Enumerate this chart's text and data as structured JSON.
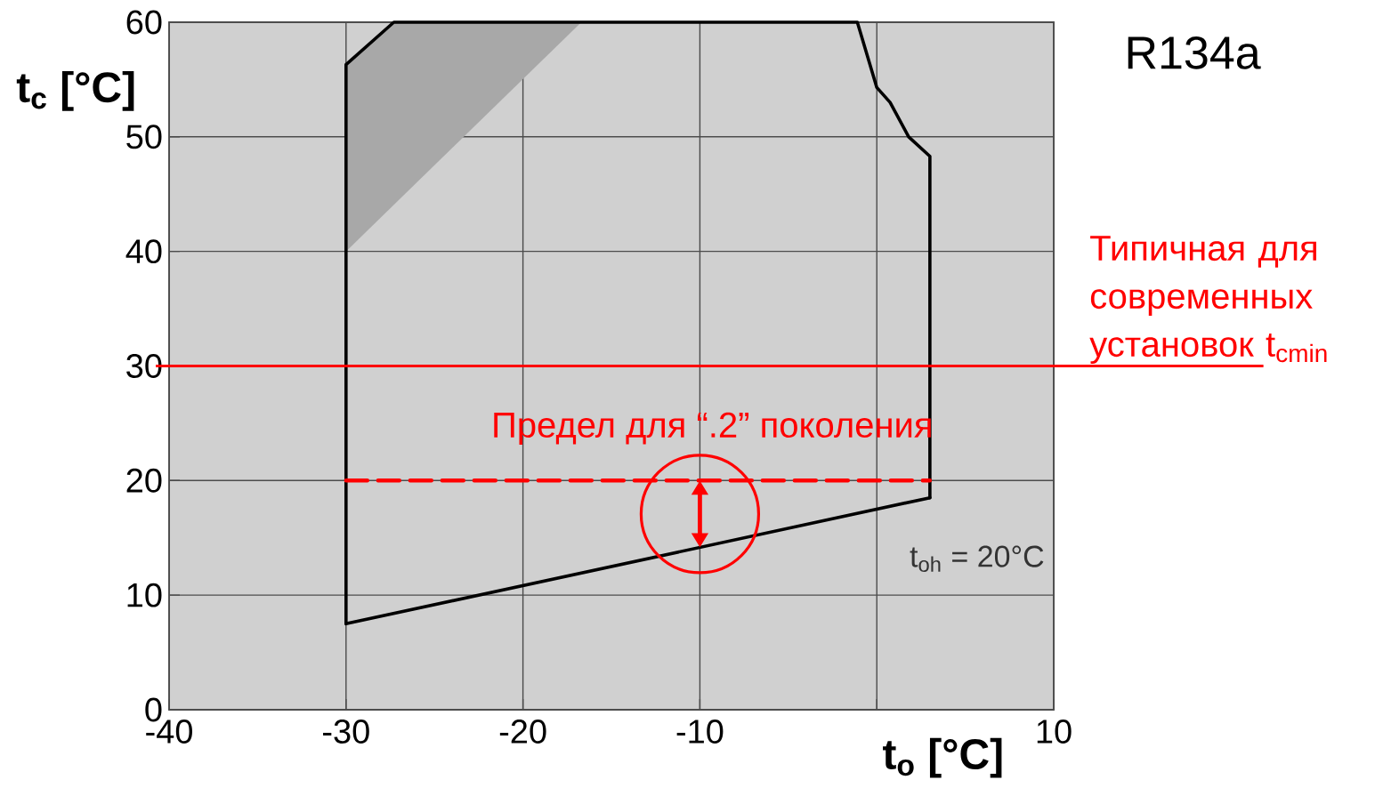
{
  "chart_data": {
    "type": "line",
    "title": "R134a",
    "xlabel": "t$_{o}$ [°C]",
    "ylabel": "t$_{c}$ [°C]",
    "xlim": [
      -40,
      10
    ],
    "ylim": [
      0,
      60
    ],
    "xticks": [
      -40,
      -30,
      -20,
      -10,
      {
        "value": 0,
        "label": null
      },
      10
    ],
    "yticks": [
      0,
      10,
      20,
      30,
      40,
      50,
      60
    ],
    "grid": true,
    "series": [
      {
        "type": "area",
        "color": "#a8a8a8",
        "x": [
          -30,
          -30,
          -27.3,
          -16.7
        ],
        "values": [
          40,
          56.3,
          60,
          60
        ]
      },
      {
        "color": "#000000",
        "x": [
          -30,
          -30,
          -27.3,
          -1.1,
          0,
          0.75,
          1.8,
          3.0,
          3.0
        ],
        "values": [
          7.5,
          56.3,
          60,
          60,
          54.3,
          53,
          50,
          48.3,
          18.5
        ]
      },
      {
        "color": "#000000",
        "x": [
          -30,
          3.0
        ],
        "values": [
          7.5,
          18.5
        ]
      },
      {
        "color": "#ff0000",
        "line_style": "dashed",
        "x": [
          -30,
          3
        ],
        "values": [
          20,
          20
        ]
      }
    ],
    "ref_lines": [
      {
        "axis": "y",
        "value": 30,
        "label": "Типичная для современных установок t$_{cmin}$",
        "color": "#ff0000"
      }
    ],
    "annotations": [
      "Предел для “.2” поколения",
      "t$_{oh}$ = 20°C"
    ]
  }
}
